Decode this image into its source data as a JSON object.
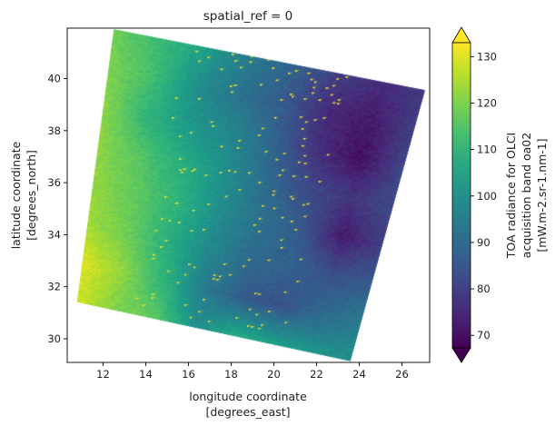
{
  "chart_data": {
    "type": "heatmap",
    "title": "spatial_ref = 0",
    "xlabel": [
      "longitude coordinate",
      "[degrees_east]"
    ],
    "ylabel": [
      "latitude coordinate",
      "[degrees_north]"
    ],
    "xlim": [
      10.32,
      27.3
    ],
    "ylim": [
      29.09,
      41.94
    ],
    "xticks": [
      12,
      14,
      16,
      18,
      20,
      22,
      24,
      26
    ],
    "yticks": [
      30,
      32,
      34,
      36,
      38,
      40
    ],
    "xtick_labels": [
      "12",
      "14",
      "16",
      "18",
      "20",
      "22",
      "24",
      "26"
    ],
    "ytick_labels": [
      "30",
      "32",
      "34",
      "36",
      "38",
      "40"
    ],
    "colormap": "viridis",
    "colorbar": {
      "label": [
        "TOA radiance for OLCI",
        "acquisition band oa02",
        "[mW.m-2.sr-1.nm-1]"
      ],
      "range": [
        67.3,
        133
      ],
      "ticks": [
        70,
        80,
        90,
        100,
        110,
        120,
        130
      ],
      "tick_labels": [
        "70",
        "80",
        "90",
        "100",
        "110",
        "120",
        "130"
      ],
      "extend": "both"
    },
    "swath_corners": {
      "top_left": [
        12.5,
        41.9
      ],
      "top_right": [
        27.08,
        39.56
      ],
      "bottom_right": [
        23.58,
        29.14
      ],
      "bottom_left": [
        10.77,
        31.41
      ]
    },
    "grid_note": "approximate mean radiance on coarse swath grid, rows top to bottom, columns left to right",
    "values": [
      [
        118,
        112,
        105,
        95,
        88,
        80,
        76,
        78
      ],
      [
        120,
        113,
        100,
        92,
        86,
        75,
        72,
        80
      ],
      [
        121,
        110,
        102,
        98,
        88,
        76,
        70,
        82
      ],
      [
        122,
        115,
        108,
        100,
        90,
        82,
        78,
        82
      ],
      [
        122,
        117,
        110,
        100,
        92,
        86,
        72,
        80
      ],
      [
        124,
        118,
        108,
        98,
        90,
        88,
        84,
        86
      ],
      [
        130,
        122,
        110,
        95,
        86,
        84,
        90,
        95
      ],
      [
        128,
        120,
        116,
        100,
        108,
        105,
        102,
        100
      ]
    ]
  }
}
